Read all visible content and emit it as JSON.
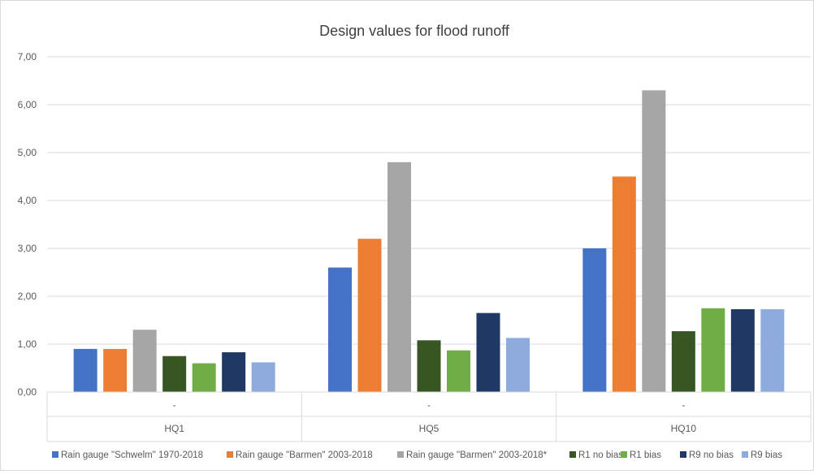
{
  "chart_data": {
    "type": "bar",
    "title": "Design values for flood runoff",
    "xlabel": "",
    "ylabel": "",
    "ylim": [
      0,
      7
    ],
    "yticks": [
      "0,00",
      "1,00",
      "2,00",
      "3,00",
      "4,00",
      "5,00",
      "6,00",
      "7,00"
    ],
    "grid": true,
    "legend_position": "bottom",
    "categories": [
      "HQ1",
      "HQ5",
      "HQ10"
    ],
    "subcategory_label": "-",
    "series": [
      {
        "name": "Rain gauge \"Schwelm\" 1970-2018",
        "color": "#4472c4",
        "values": [
          0.9,
          2.6,
          3.0
        ]
      },
      {
        "name": "Rain gauge \"Barmen\" 2003-2018",
        "color": "#ed7d31",
        "values": [
          0.9,
          3.2,
          4.5
        ]
      },
      {
        "name": "Rain gauge \"Barmen\" 2003-2018*",
        "color": "#a5a5a5",
        "values": [
          1.3,
          4.8,
          6.3
        ]
      },
      {
        "name": "R1 no bias",
        "color": "#375623",
        "values": [
          0.75,
          1.08,
          1.27
        ]
      },
      {
        "name": "R1 bias",
        "color": "#70ad47",
        "values": [
          0.6,
          0.87,
          1.75
        ]
      },
      {
        "name": "R9 no bias",
        "color": "#203864",
        "values": [
          0.83,
          1.65,
          1.73
        ]
      },
      {
        "name": "R9 bias",
        "color": "#8faadc",
        "values": [
          0.62,
          1.13,
          1.73
        ]
      }
    ]
  }
}
